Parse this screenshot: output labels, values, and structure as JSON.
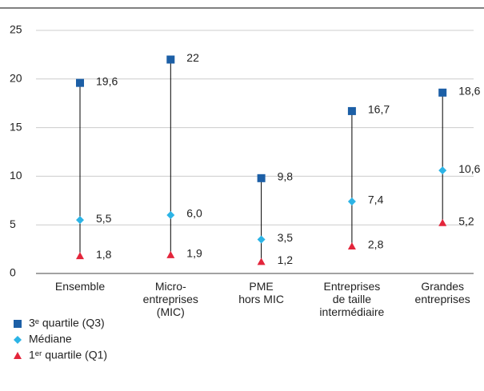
{
  "chart_data": {
    "type": "dotrange",
    "categories": [
      "Ensemble",
      "Micro-\nentreprises\n(MIC)",
      "PME\nhors MIC",
      "Entreprises\nde taille\nintermédiaire",
      "Grandes\nentreprises"
    ],
    "series": [
      {
        "name": "3ᵉ quartile (Q3)",
        "color": "#1c5fa6",
        "marker": "square",
        "values": [
          19.6,
          22,
          9.8,
          16.7,
          18.6
        ],
        "value_labels": [
          "19,6",
          "22",
          "9,8",
          "16,7",
          "18,6"
        ]
      },
      {
        "name": "Médiane",
        "color": "#2cb4e6",
        "marker": "diamond",
        "values": [
          5.5,
          6.0,
          3.5,
          7.4,
          10.6
        ],
        "value_labels": [
          "5,5",
          "6,0",
          "3,5",
          "7,4",
          "10,6"
        ]
      },
      {
        "name": "1ᵉʳ quartile (Q1)",
        "color": "#e3253b",
        "marker": "triangle",
        "values": [
          1.8,
          1.9,
          1.2,
          2.8,
          5.2
        ],
        "value_labels": [
          "1,8",
          "1,9",
          "1,2",
          "2,8",
          "5,2"
        ]
      }
    ],
    "ylim": [
      0,
      25
    ],
    "yticks": [
      0,
      5,
      10,
      15,
      20,
      25
    ],
    "grid": true,
    "legend": "bottom-left"
  }
}
